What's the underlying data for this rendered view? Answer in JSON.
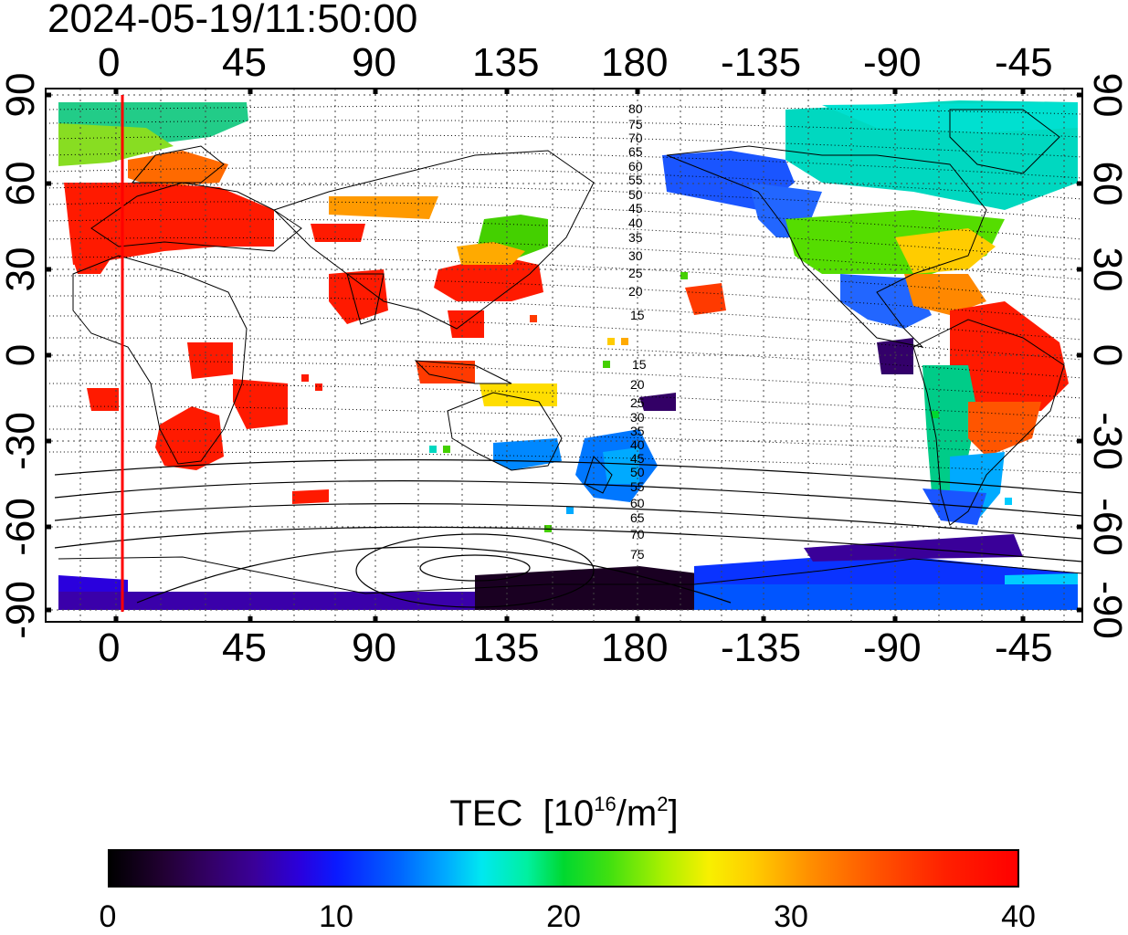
{
  "title": "2024-05-19/11:50:00",
  "x_ticks_top": [
    "0",
    "45",
    "90",
    "135",
    "180",
    "-135",
    "-90",
    "-45"
  ],
  "x_ticks_bottom": [
    "0",
    "45",
    "90",
    "135",
    "180",
    "-135",
    "-90",
    "-45"
  ],
  "y_ticks_left": [
    "90",
    "60",
    "30",
    "0",
    "-30",
    "-60",
    "-90"
  ],
  "y_ticks_right": [
    "90",
    "60",
    "30",
    "0",
    "-30",
    "-60",
    "-90"
  ],
  "contour_labels_north": [
    "80",
    "75",
    "70",
    "65",
    "60",
    "55",
    "50",
    "45",
    "40",
    "35",
    "30",
    "25",
    "20",
    "15"
  ],
  "contour_labels_south": [
    "15",
    "20",
    "25",
    "30",
    "35",
    "40",
    "45",
    "50",
    "55",
    "60",
    "65",
    "70",
    "75"
  ],
  "colorbar": {
    "title": "TEC",
    "unit_prefix": "[10",
    "unit_exp": "16",
    "unit_mid": "/m",
    "unit_exp2": "2",
    "unit_suffix": "]",
    "labels": [
      "0",
      "10",
      "20",
      "30",
      "40"
    ],
    "range": [
      0,
      40
    ]
  },
  "colors": {
    "marker_line": "#ff0000",
    "high_tec": "#ff1a00",
    "low_tec": "#220044"
  },
  "marker_longitude": 2.5
}
